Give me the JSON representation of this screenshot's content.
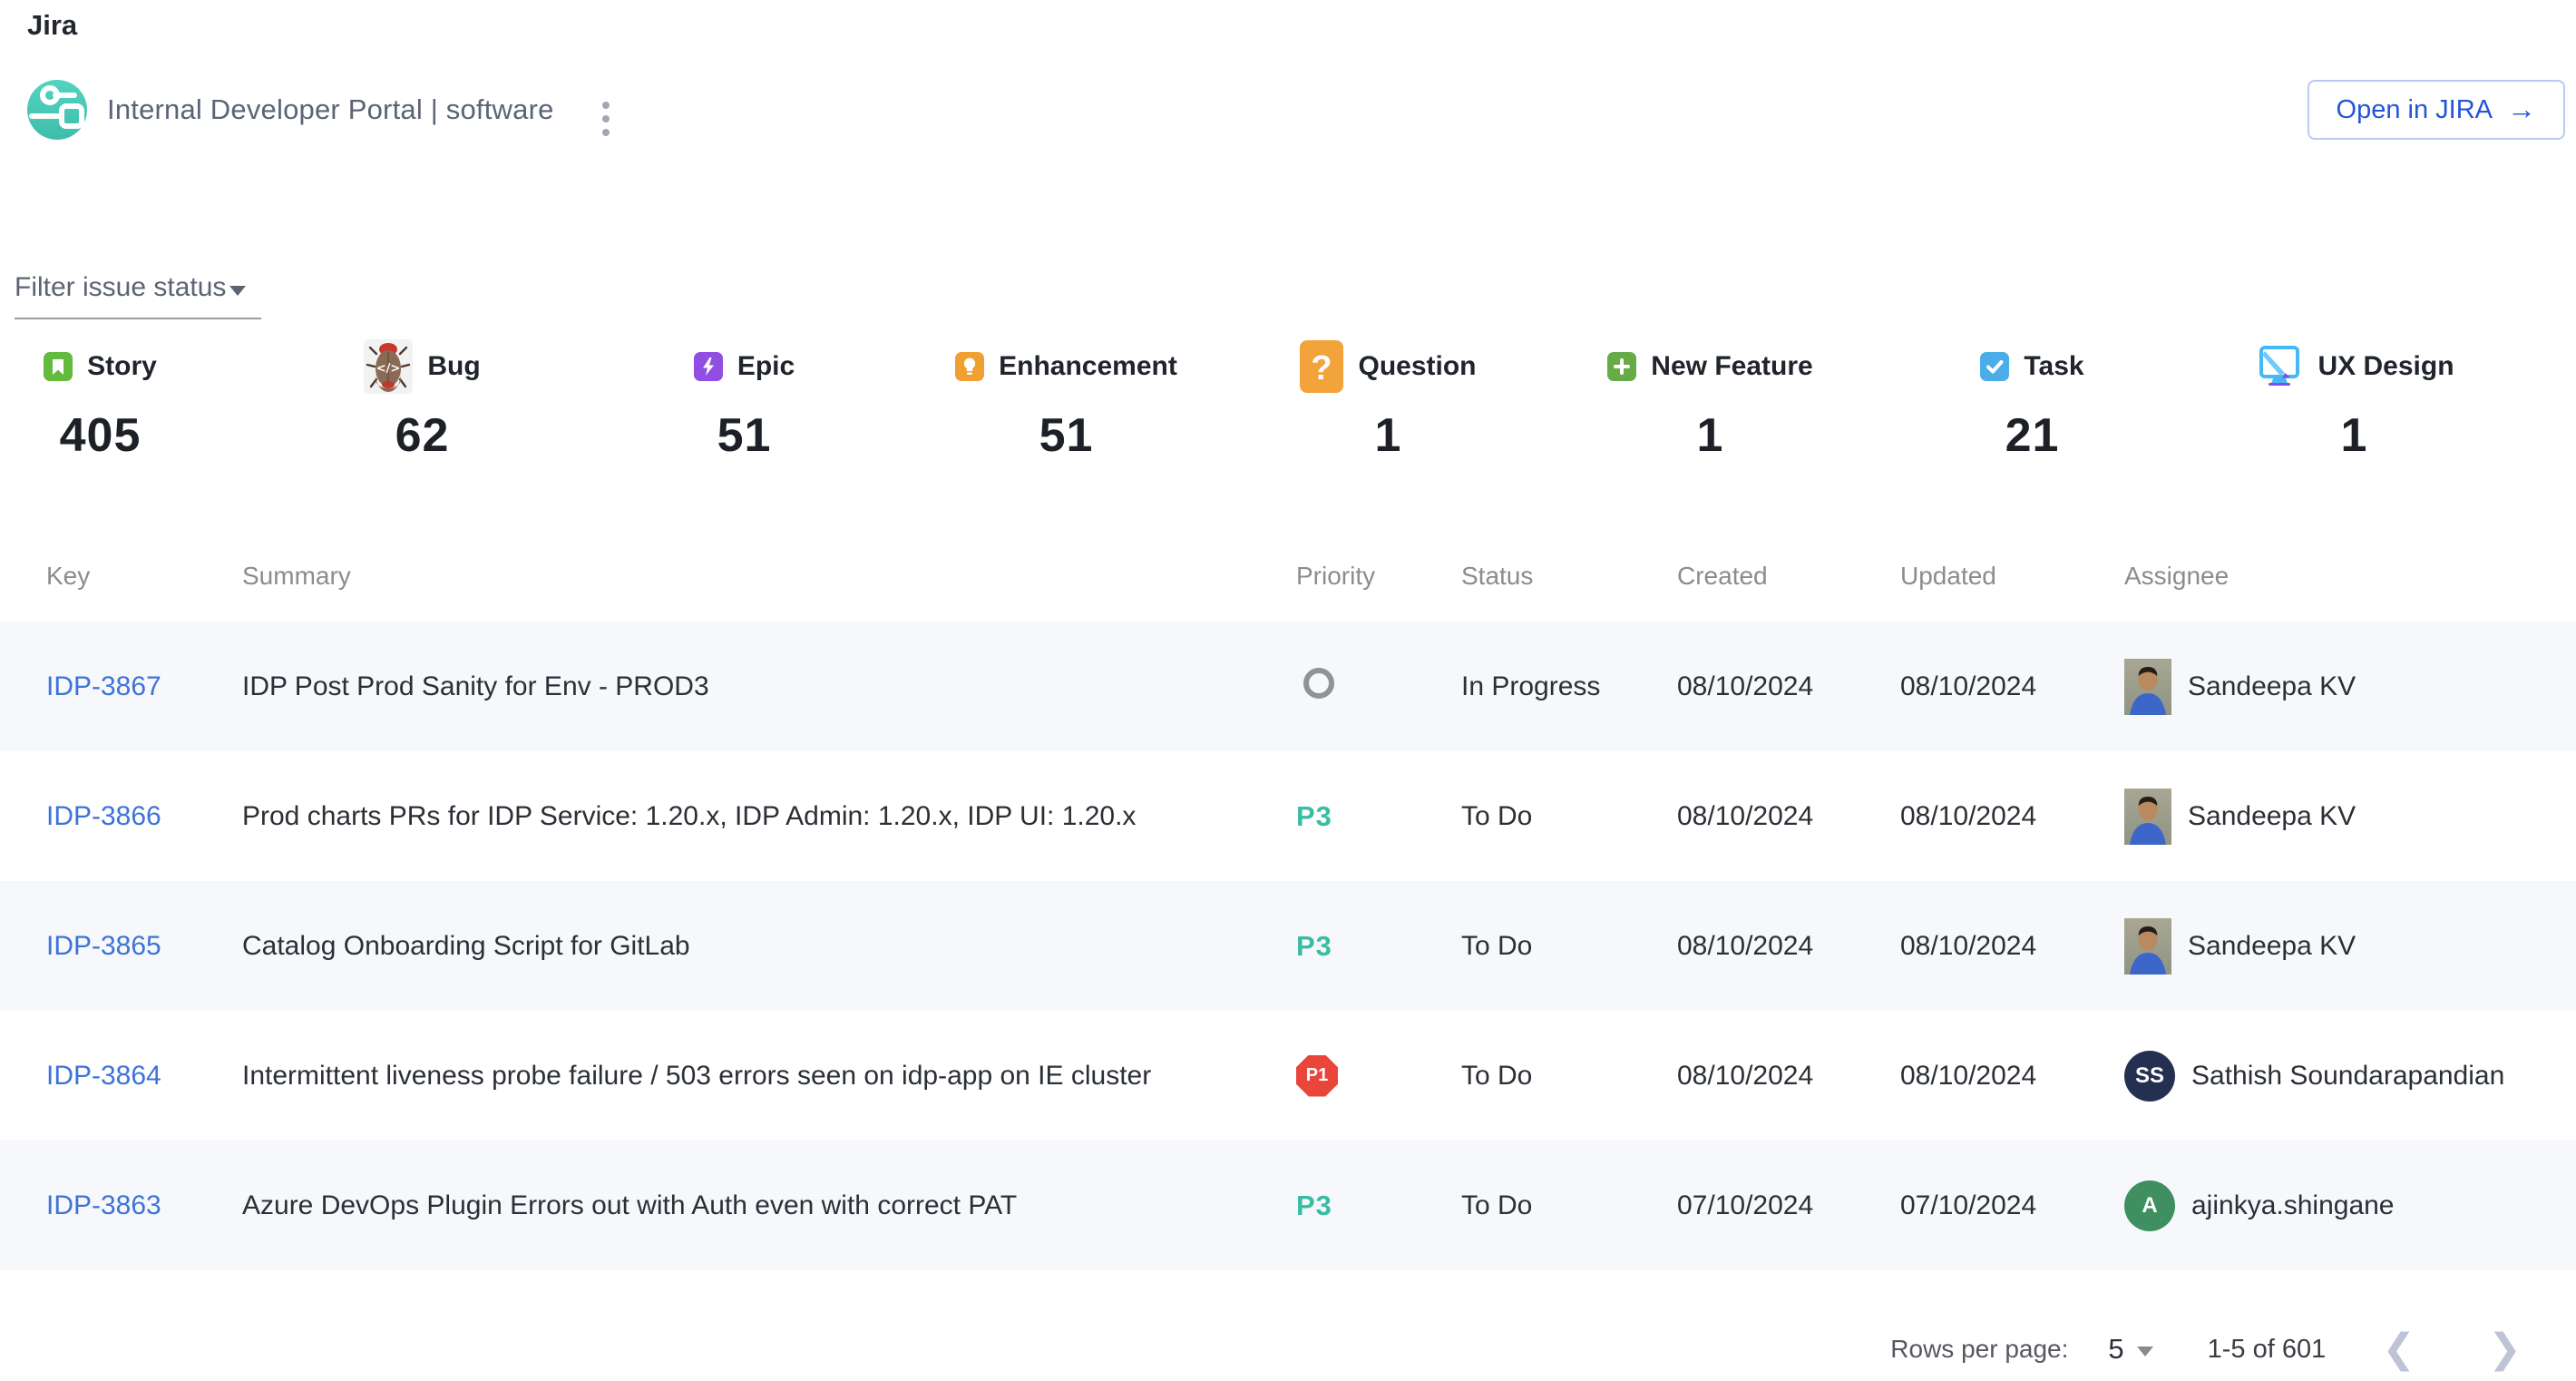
{
  "header": {
    "app_title": "Jira",
    "entity_title": "Internal Developer Portal | software",
    "open_button_label": "Open in JIRA"
  },
  "filter": {
    "label": "Filter issue status"
  },
  "issue_type_counters": [
    {
      "label": "Story",
      "count": "405",
      "icon": "story-icon",
      "color": "#63ba3c"
    },
    {
      "label": "Bug",
      "count": "62",
      "icon": "bug-icon",
      "color": "#8a6a55"
    },
    {
      "label": "Epic",
      "count": "51",
      "icon": "epic-icon",
      "color": "#904ee2"
    },
    {
      "label": "Enhancement",
      "count": "51",
      "icon": "enhancement-icon",
      "color": "#f0a030"
    },
    {
      "label": "Question",
      "count": "1",
      "icon": "question-icon",
      "color": "#f2a33c"
    },
    {
      "label": "New Feature",
      "count": "1",
      "icon": "new-feature-icon",
      "color": "#67ab49"
    },
    {
      "label": "Task",
      "count": "21",
      "icon": "task-icon",
      "color": "#4bade8"
    },
    {
      "label": "UX Design",
      "count": "1",
      "icon": "ux-design-icon",
      "color": "#47b7f8"
    }
  ],
  "table": {
    "columns": [
      "Key",
      "Summary",
      "Priority",
      "Status",
      "Created",
      "Updated",
      "Assignee"
    ],
    "rows": [
      {
        "key": "IDP-3867",
        "summary": "IDP Post Prod Sanity for Env - PROD3",
        "priority": {
          "kind": "none"
        },
        "status": "In Progress",
        "created": "08/10/2024",
        "updated": "08/10/2024",
        "assignee": {
          "name": "Sandeepa KV",
          "avatar": {
            "type": "photo"
          }
        }
      },
      {
        "key": "IDP-3866",
        "summary": "Prod charts PRs for IDP Service: 1.20.x, IDP Admin: 1.20.x, IDP UI: 1.20.x",
        "priority": {
          "kind": "text",
          "label": "P3"
        },
        "status": "To Do",
        "created": "08/10/2024",
        "updated": "08/10/2024",
        "assignee": {
          "name": "Sandeepa KV",
          "avatar": {
            "type": "photo"
          }
        }
      },
      {
        "key": "IDP-3865",
        "summary": "Catalog Onboarding Script for GitLab",
        "priority": {
          "kind": "text",
          "label": "P3"
        },
        "status": "To Do",
        "created": "08/10/2024",
        "updated": "08/10/2024",
        "assignee": {
          "name": "Sandeepa KV",
          "avatar": {
            "type": "photo"
          }
        }
      },
      {
        "key": "IDP-3864",
        "summary": "Intermittent liveness probe failure / 503 errors seen on idp-app on IE cluster",
        "priority": {
          "kind": "badge",
          "label": "P1"
        },
        "status": "To Do",
        "created": "08/10/2024",
        "updated": "08/10/2024",
        "assignee": {
          "name": "Sathish Soundarapandian",
          "avatar": {
            "type": "initials",
            "text": "SS",
            "color": "#24304f"
          }
        }
      },
      {
        "key": "IDP-3863",
        "summary": "Azure DevOps Plugin Errors out with Auth even with correct PAT",
        "priority": {
          "kind": "text",
          "label": "P3"
        },
        "status": "To Do",
        "created": "07/10/2024",
        "updated": "07/10/2024",
        "assignee": {
          "name": "ajinkya.shingane",
          "avatar": {
            "type": "initial",
            "text": "A",
            "color": "#3f8f60"
          }
        }
      }
    ]
  },
  "pagination": {
    "rows_per_page_label": "Rows per page:",
    "rows_per_page_value": "5",
    "range_label": "1-5 of 601",
    "prev_icon": "chevron-left-icon",
    "next_icon": "chevron-right-icon"
  },
  "colors": {
    "link_blue": "#3d73d9",
    "button_blue": "#2355d8",
    "row_stripe": "#f7f8fb",
    "priority_p3_teal": "#3abca4",
    "priority_p1_red": "#e9453a",
    "logo_teal": "#46ccb9"
  }
}
